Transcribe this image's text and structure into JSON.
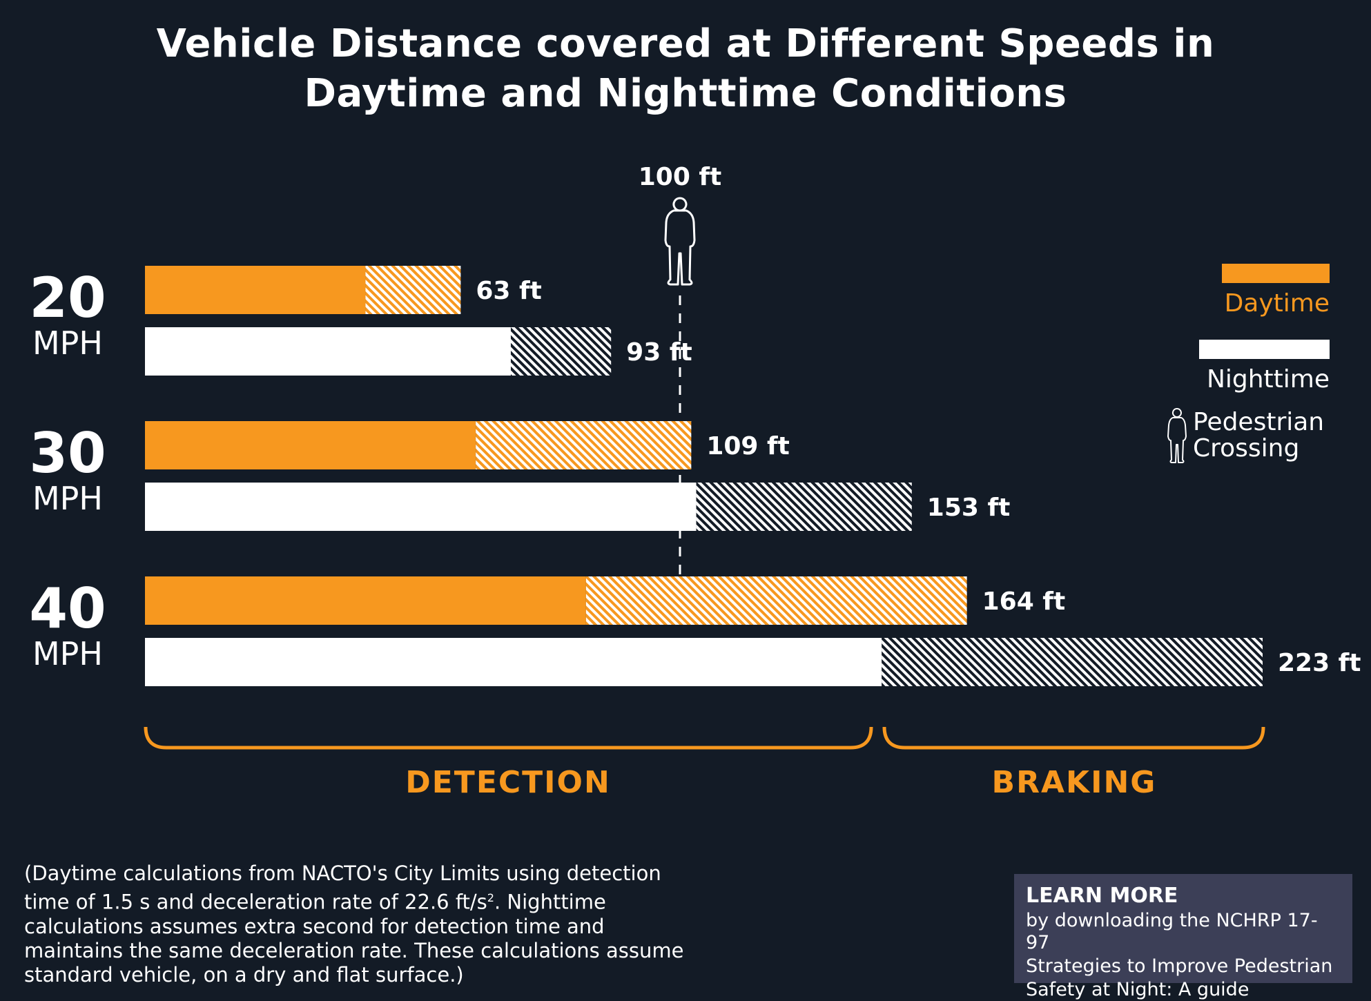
{
  "title": {
    "line1": "Vehicle Distance covered at Different Speeds in",
    "line2": "Daytime and Nighttime Conditions"
  },
  "colors": {
    "background": "#131b26",
    "daytime": "#f7981f",
    "nighttime": "#ffffff",
    "learn_box": "#3c3f57"
  },
  "speed_groups": [
    {
      "speed": "20",
      "unit": "MPH"
    },
    {
      "speed": "30",
      "unit": "MPH"
    },
    {
      "speed": "40",
      "unit": "MPH"
    }
  ],
  "legend": {
    "daytime": "Daytime",
    "nighttime": "Nighttime",
    "pedestrian_line1": "Pedestrian",
    "pedestrian_line2": "Crossing"
  },
  "marker": {
    "label": "100 ft",
    "value": 100
  },
  "brackets": {
    "detection": "DETECTION",
    "braking": "BRAKING"
  },
  "footnote": {
    "text_before_sup": "(Daytime calculations from NACTO's City Limits using detection time of 1.5 s and deceleration rate of 22.6 ft/s",
    "sup": "2",
    "text_after_sup": ".  Nighttime calculations assumes extra second for detection time and maintains the same deceleration rate.  These calculations assume standard vehicle, on a dry and flat surface.)"
  },
  "learn_more": {
    "heading": "LEARN MORE",
    "line1": "by downloading the NCHRP 17-97",
    "line2": "Strategies to Improve Pedestrian",
    "line3": "Safety at Night: A guide"
  },
  "chart_data": {
    "type": "bar",
    "orientation": "horizontal",
    "stacked": true,
    "title": "Vehicle Distance covered at Different Speeds in Daytime and Nighttime Conditions",
    "unit": "ft",
    "categories": [
      "20 MPH",
      "30 MPH",
      "40 MPH"
    ],
    "series": [
      {
        "name": "Daytime",
        "condition": "day",
        "detection": [
          44,
          66,
          88
        ],
        "total": [
          63,
          109,
          164
        ],
        "labels": [
          "63 ft",
          "109 ft",
          "164 ft"
        ]
      },
      {
        "name": "Nighttime",
        "condition": "night",
        "detection": [
          73,
          110,
          147
        ],
        "total": [
          93,
          153,
          223
        ],
        "labels": [
          "93 ft",
          "153 ft",
          "223 ft"
        ]
      }
    ],
    "segments": [
      "Detection (solid)",
      "Braking (hatched)"
    ],
    "reference_line": {
      "value": 100,
      "label": "100 ft",
      "meaning": "Pedestrian Crossing"
    },
    "xlim": [
      0,
      223
    ],
    "legend_position": "right",
    "grid": false
  }
}
